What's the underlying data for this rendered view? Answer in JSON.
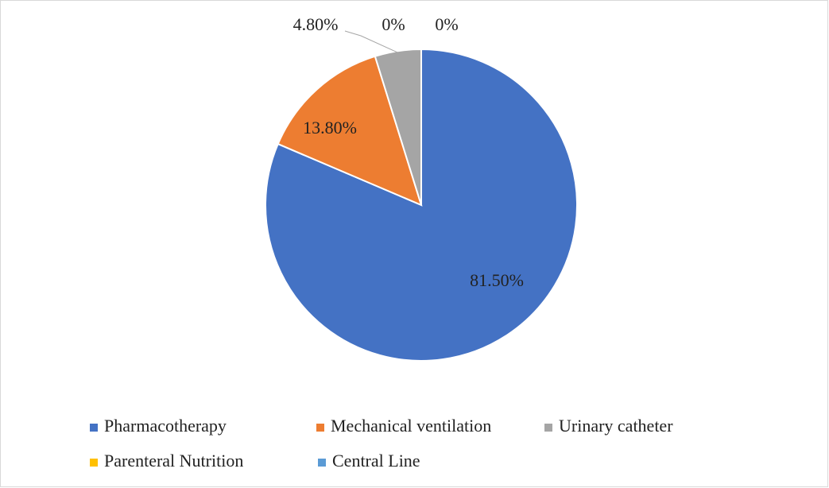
{
  "chart_data": {
    "type": "pie",
    "categories": [
      "Pharmacotherapy",
      "Mechanical ventilation",
      "Urinary catheter",
      "Parenteral Nutrition",
      "Central Line"
    ],
    "values": [
      81.5,
      13.8,
      4.8,
      0,
      0
    ],
    "value_labels": [
      "81.50%",
      "13.80%",
      "4.80%",
      "0%",
      "0%"
    ],
    "colors": [
      "#4472c4",
      "#ed7d31",
      "#a5a5a5",
      "#ffc000",
      "#5b9bd5"
    ],
    "legend": "bottom"
  }
}
